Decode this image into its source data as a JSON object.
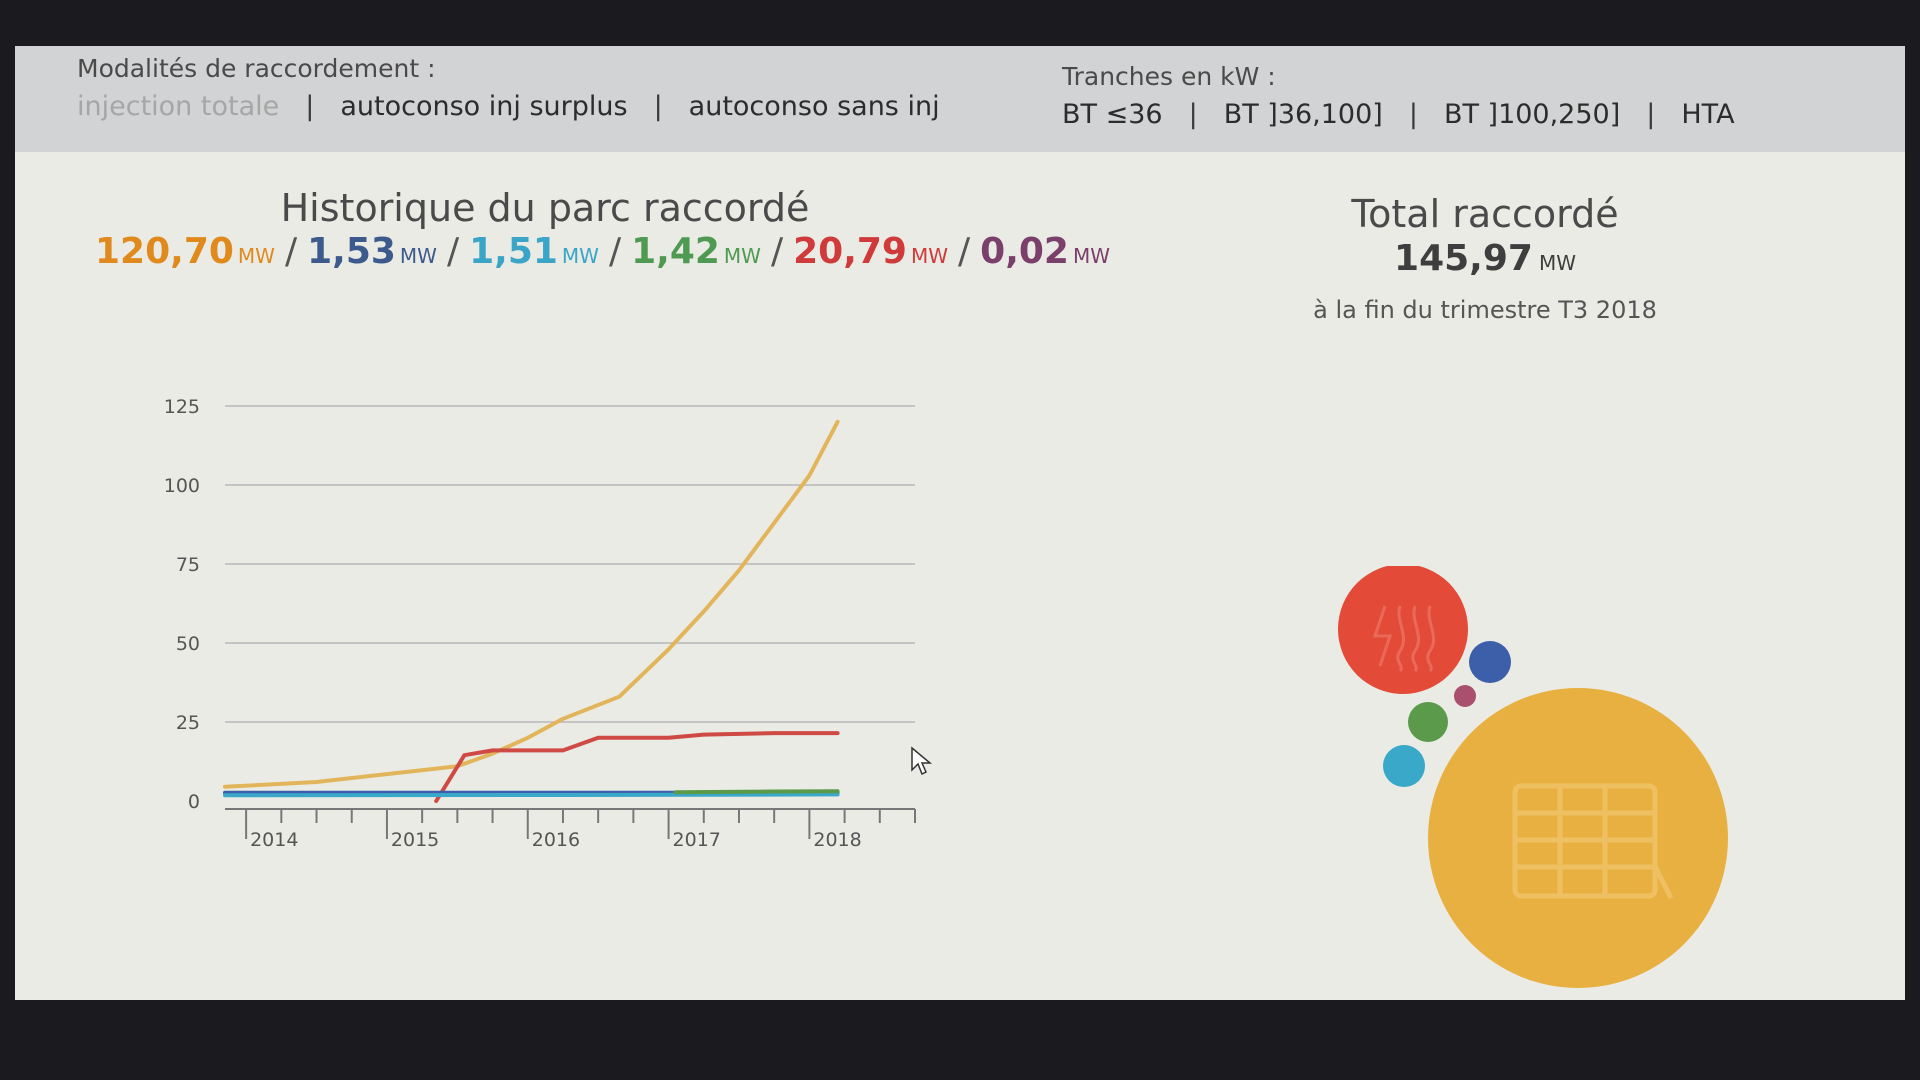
{
  "modalites": {
    "caption": "Modalités de raccordement :",
    "options": [
      "injection totale",
      "autoconso inj surplus",
      "autoconso sans inj"
    ]
  },
  "tranches": {
    "caption": "Tranches en kW :",
    "options": [
      "BT ≤36",
      "BT ]36,100]",
      "BT ]100,250]",
      "HTA"
    ]
  },
  "historique": {
    "title": "Historique du parc raccordé",
    "values": [
      {
        "value": "120,70",
        "unit": "MW",
        "color": "#e08a1e"
      },
      {
        "value": "1,53",
        "unit": "MW",
        "color": "#3d5a8c"
      },
      {
        "value": "1,51",
        "unit": "MW",
        "color": "#3aa5c7"
      },
      {
        "value": "1,42",
        "unit": "MW",
        "color": "#4f9a52"
      },
      {
        "value": "20,79",
        "unit": "MW",
        "color": "#cf3a3a"
      },
      {
        "value": "0,02",
        "unit": "MW",
        "color": "#7b3f6b"
      }
    ]
  },
  "total": {
    "title": "Total raccordé",
    "value": "145,97",
    "unit": "MW",
    "subtitle": "à la fin du trimestre T3 2018"
  },
  "colors": {
    "solar": "#e8b040",
    "hydro": "#e34a37",
    "blue": "#3d5ea8",
    "green": "#5a9a4a",
    "cyan": "#3aa8c8",
    "purple": "#a8506e"
  },
  "chart_data": {
    "type": "line",
    "yticks": [
      0,
      25,
      50,
      75,
      100,
      125
    ],
    "ylim": [
      0,
      125
    ],
    "xlim": [
      2013.6,
      2018.5
    ],
    "xtick_labels": [
      "2014",
      "2015",
      "2016",
      "2017",
      "2018"
    ],
    "series": [
      {
        "color": "#e2b55a",
        "points": [
          [
            2013.6,
            4.5
          ],
          [
            2014.25,
            6
          ],
          [
            2014.75,
            8.5
          ],
          [
            2015.25,
            11
          ],
          [
            2015.5,
            15
          ],
          [
            2015.75,
            20
          ],
          [
            2016.0,
            26
          ],
          [
            2016.4,
            33
          ],
          [
            2016.75,
            48
          ],
          [
            2017.0,
            60
          ],
          [
            2017.25,
            73
          ],
          [
            2017.5,
            88
          ],
          [
            2017.75,
            103
          ],
          [
            2017.95,
            120
          ]
        ]
      },
      {
        "color": "#cf4a45",
        "points": [
          [
            2015.1,
            0
          ],
          [
            2015.3,
            14.5
          ],
          [
            2015.5,
            16
          ],
          [
            2016.0,
            16
          ],
          [
            2016.25,
            20
          ],
          [
            2016.75,
            20
          ],
          [
            2017.0,
            21
          ],
          [
            2017.5,
            21.5
          ],
          [
            2017.95,
            21.5
          ]
        ]
      },
      {
        "color": "#3d5ea8",
        "points": [
          [
            2013.6,
            2.6
          ],
          [
            2016.0,
            2.6
          ],
          [
            2017.0,
            2.6
          ],
          [
            2017.95,
            2.6
          ]
        ]
      },
      {
        "color": "#3aa8c8",
        "points": [
          [
            2013.6,
            1.8
          ],
          [
            2016.0,
            1.9
          ],
          [
            2017.0,
            2.0
          ],
          [
            2017.95,
            2.1
          ]
        ]
      },
      {
        "color": "#5a9a4a",
        "points": [
          [
            2016.8,
            2.8
          ],
          [
            2017.5,
            3.0
          ],
          [
            2017.95,
            3.1
          ]
        ]
      }
    ]
  }
}
